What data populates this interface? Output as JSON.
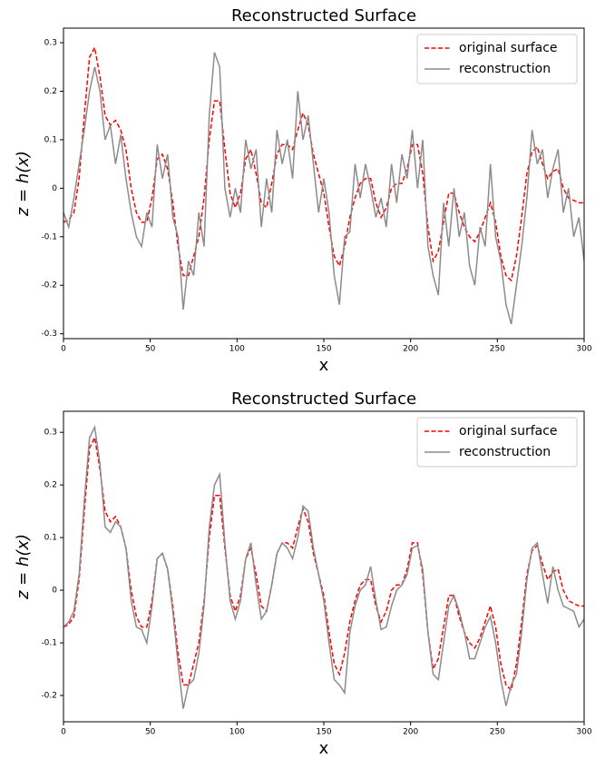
{
  "chart_data": [
    {
      "type": "line",
      "title": "Reconstructed Surface",
      "xlabel": "x",
      "ylabel": "z = h(x)",
      "x": [
        0,
        3,
        6,
        9,
        12,
        15,
        18,
        21,
        24,
        27,
        30,
        33,
        36,
        39,
        42,
        45,
        48,
        51,
        54,
        57,
        60,
        63,
        66,
        69,
        72,
        75,
        78,
        81,
        84,
        87,
        90,
        93,
        96,
        99,
        102,
        105,
        108,
        111,
        114,
        117,
        120,
        123,
        126,
        129,
        132,
        135,
        138,
        141,
        144,
        147,
        150,
        153,
        156,
        159,
        162,
        165,
        168,
        171,
        174,
        177,
        180,
        183,
        186,
        189,
        192,
        195,
        198,
        201,
        204,
        207,
        210,
        213,
        216,
        219,
        222,
        225,
        228,
        231,
        234,
        237,
        240,
        243,
        246,
        249,
        252,
        255,
        258,
        261,
        264,
        267,
        270,
        273,
        276,
        279,
        282,
        285,
        288,
        291,
        294,
        297,
        300
      ],
      "series": [
        {
          "name": "original surface",
          "color": "#ff0000",
          "linestyle": "dashed",
          "values": [
            -0.07,
            -0.065,
            -0.05,
            0.02,
            0.15,
            0.27,
            0.29,
            0.23,
            0.15,
            0.13,
            0.14,
            0.12,
            0.08,
            0.0,
            -0.05,
            -0.07,
            -0.07,
            -0.02,
            0.06,
            0.07,
            0.04,
            -0.03,
            -0.12,
            -0.18,
            -0.18,
            -0.14,
            -0.1,
            -0.02,
            0.1,
            0.18,
            0.18,
            0.08,
            -0.01,
            -0.04,
            -0.01,
            0.06,
            0.08,
            0.03,
            -0.03,
            -0.04,
            0.01,
            0.07,
            0.09,
            0.09,
            0.08,
            0.12,
            0.155,
            0.13,
            0.07,
            0.03,
            -0.01,
            -0.08,
            -0.14,
            -0.16,
            -0.12,
            -0.06,
            -0.02,
            0.01,
            0.02,
            0.02,
            -0.03,
            -0.06,
            -0.04,
            0.0,
            0.01,
            0.01,
            0.04,
            0.09,
            0.09,
            0.03,
            -0.08,
            -0.15,
            -0.13,
            -0.07,
            -0.01,
            -0.01,
            -0.05,
            -0.08,
            -0.1,
            -0.11,
            -0.09,
            -0.06,
            -0.03,
            -0.07,
            -0.14,
            -0.18,
            -0.19,
            -0.14,
            -0.06,
            0.03,
            0.075,
            0.085,
            0.05,
            0.02,
            0.035,
            0.04,
            0.0,
            -0.02,
            -0.025,
            -0.03,
            -0.03
          ]
        },
        {
          "name": "reconstruction",
          "color": "#8c8c8c",
          "linestyle": "solid",
          "values": [
            -0.05,
            -0.08,
            -0.02,
            0.05,
            0.12,
            0.2,
            0.25,
            0.2,
            0.1,
            0.13,
            0.05,
            0.11,
            0.02,
            -0.05,
            -0.1,
            -0.12,
            -0.05,
            -0.08,
            0.09,
            0.02,
            0.07,
            -0.06,
            -0.1,
            -0.25,
            -0.15,
            -0.18,
            -0.05,
            -0.12,
            0.15,
            0.28,
            0.25,
            0.0,
            -0.06,
            0.0,
            -0.05,
            0.1,
            0.04,
            0.08,
            -0.08,
            0.02,
            -0.05,
            0.12,
            0.05,
            0.1,
            0.02,
            0.2,
            0.1,
            0.15,
            0.05,
            -0.05,
            0.02,
            -0.05,
            -0.18,
            -0.24,
            -0.1,
            -0.09,
            0.05,
            -0.02,
            0.05,
            0.0,
            -0.06,
            -0.02,
            -0.08,
            0.05,
            -0.03,
            0.07,
            0.02,
            0.12,
            0.0,
            0.1,
            -0.12,
            -0.18,
            -0.22,
            -0.03,
            -0.12,
            0.0,
            -0.1,
            -0.05,
            -0.16,
            -0.2,
            -0.08,
            -0.12,
            0.05,
            -0.1,
            -0.15,
            -0.24,
            -0.28,
            -0.2,
            -0.12,
            -0.02,
            0.12,
            0.05,
            0.08,
            -0.02,
            0.04,
            0.08,
            -0.05,
            0.0,
            -0.1,
            -0.06,
            -0.15
          ]
        }
      ],
      "xlim": [
        0,
        300
      ],
      "xticks": [
        0,
        50,
        100,
        150,
        200,
        250,
        300
      ],
      "ylim": [
        -0.31,
        0.33
      ],
      "yticks": [
        -0.3,
        -0.2,
        -0.1,
        0.0,
        0.1,
        0.2,
        0.3
      ],
      "legend": "upper right"
    },
    {
      "type": "line",
      "title": "Reconstructed Surface",
      "xlabel": "x",
      "ylabel": "z = h(x)",
      "x": [
        0,
        3,
        6,
        9,
        12,
        15,
        18,
        21,
        24,
        27,
        30,
        33,
        36,
        39,
        42,
        45,
        48,
        51,
        54,
        57,
        60,
        63,
        66,
        69,
        72,
        75,
        78,
        81,
        84,
        87,
        90,
        93,
        96,
        99,
        102,
        105,
        108,
        111,
        114,
        117,
        120,
        123,
        126,
        129,
        132,
        135,
        138,
        141,
        144,
        147,
        150,
        153,
        156,
        159,
        162,
        165,
        168,
        171,
        174,
        177,
        180,
        183,
        186,
        189,
        192,
        195,
        198,
        201,
        204,
        207,
        210,
        213,
        216,
        219,
        222,
        225,
        228,
        231,
        234,
        237,
        240,
        243,
        246,
        249,
        252,
        255,
        258,
        261,
        264,
        267,
        270,
        273,
        276,
        279,
        282,
        285,
        288,
        291,
        294,
        297,
        300
      ],
      "series": [
        {
          "name": "original surface",
          "color": "#ff0000",
          "linestyle": "dashed",
          "values": [
            -0.07,
            -0.065,
            -0.05,
            0.02,
            0.15,
            0.27,
            0.29,
            0.23,
            0.15,
            0.13,
            0.14,
            0.12,
            0.08,
            0.0,
            -0.05,
            -0.07,
            -0.07,
            -0.02,
            0.06,
            0.07,
            0.04,
            -0.03,
            -0.12,
            -0.18,
            -0.18,
            -0.14,
            -0.1,
            -0.02,
            0.1,
            0.18,
            0.18,
            0.08,
            -0.01,
            -0.04,
            -0.01,
            0.06,
            0.08,
            0.03,
            -0.03,
            -0.04,
            0.01,
            0.07,
            0.09,
            0.09,
            0.08,
            0.12,
            0.155,
            0.13,
            0.07,
            0.03,
            -0.01,
            -0.08,
            -0.14,
            -0.16,
            -0.12,
            -0.06,
            -0.02,
            0.01,
            0.02,
            0.02,
            -0.03,
            -0.06,
            -0.04,
            0.0,
            0.01,
            0.01,
            0.04,
            0.09,
            0.09,
            0.03,
            -0.08,
            -0.15,
            -0.13,
            -0.07,
            -0.01,
            -0.01,
            -0.05,
            -0.08,
            -0.1,
            -0.11,
            -0.09,
            -0.06,
            -0.03,
            -0.07,
            -0.14,
            -0.18,
            -0.19,
            -0.14,
            -0.06,
            0.03,
            0.075,
            0.085,
            0.05,
            0.02,
            0.035,
            0.04,
            0.0,
            -0.02,
            -0.025,
            -0.03,
            -0.03
          ]
        },
        {
          "name": "reconstruction",
          "color": "#8c8c8c",
          "linestyle": "solid",
          "values": [
            -0.07,
            -0.06,
            -0.04,
            0.03,
            0.17,
            0.29,
            0.31,
            0.24,
            0.12,
            0.11,
            0.13,
            0.12,
            0.08,
            -0.02,
            -0.07,
            -0.075,
            -0.1,
            -0.03,
            0.06,
            0.07,
            0.04,
            -0.04,
            -0.14,
            -0.225,
            -0.18,
            -0.17,
            -0.12,
            -0.03,
            0.12,
            0.2,
            0.22,
            0.09,
            -0.02,
            -0.055,
            -0.02,
            0.06,
            0.09,
            0.01,
            -0.055,
            -0.04,
            0.01,
            0.07,
            0.09,
            0.08,
            0.06,
            0.1,
            0.16,
            0.15,
            0.08,
            0.03,
            -0.02,
            -0.1,
            -0.17,
            -0.18,
            -0.195,
            -0.08,
            -0.03,
            0.0,
            0.01,
            0.045,
            -0.02,
            -0.075,
            -0.07,
            -0.03,
            0.0,
            0.01,
            0.03,
            0.08,
            0.085,
            0.04,
            -0.08,
            -0.16,
            -0.17,
            -0.1,
            -0.03,
            -0.01,
            -0.04,
            -0.08,
            -0.13,
            -0.13,
            -0.1,
            -0.07,
            -0.05,
            -0.1,
            -0.17,
            -0.22,
            -0.18,
            -0.16,
            -0.08,
            0.02,
            0.08,
            0.09,
            0.03,
            -0.025,
            0.045,
            0.0,
            -0.03,
            -0.035,
            -0.04,
            -0.07,
            -0.055
          ]
        }
      ],
      "xlim": [
        0,
        300
      ],
      "xticks": [
        0,
        50,
        100,
        150,
        200,
        250,
        300
      ],
      "ylim": [
        -0.25,
        0.34
      ],
      "yticks": [
        -0.2,
        -0.1,
        0.0,
        0.1,
        0.2,
        0.3
      ],
      "legend": "upper right"
    }
  ]
}
